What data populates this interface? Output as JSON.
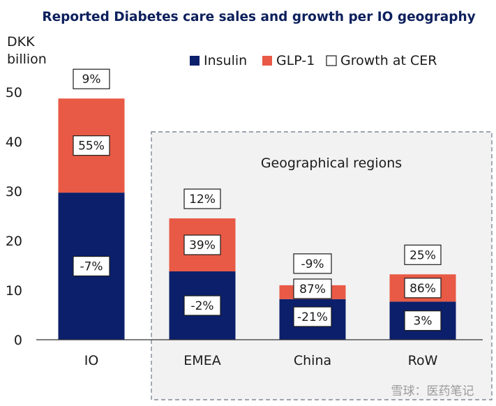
{
  "chart_data": {
    "type": "bar",
    "stacked": true,
    "title": "Reported Diabetes care sales and growth per IO geography",
    "ylabel": "DKK billion",
    "ylim": [
      0,
      50
    ],
    "yticks": [
      0,
      10,
      20,
      30,
      40,
      50
    ],
    "grid": false,
    "legend_position": "top",
    "categories": [
      "IO",
      "EMEA",
      "China",
      "RoW"
    ],
    "series": [
      {
        "name": "Insulin",
        "color": "#0b1f6b",
        "values": [
          29.7,
          13.8,
          8.2,
          7.7
        ],
        "growth_labels": [
          "-7%",
          "-2%",
          "-21%",
          "3%"
        ]
      },
      {
        "name": "GLP-1",
        "color": "#e85a45",
        "values": [
          19.0,
          10.7,
          2.8,
          5.5
        ],
        "growth_labels": [
          "55%",
          "39%",
          "87%",
          "86%"
        ]
      }
    ],
    "total_growth_labels": [
      "9%",
      "12%",
      "-9%",
      "25%"
    ],
    "legend": [
      "Insulin",
      "GLP-1",
      "Growth at CER"
    ],
    "annotations": [
      "Geographical regions"
    ]
  },
  "watermark": "雪球：医药笔记"
}
